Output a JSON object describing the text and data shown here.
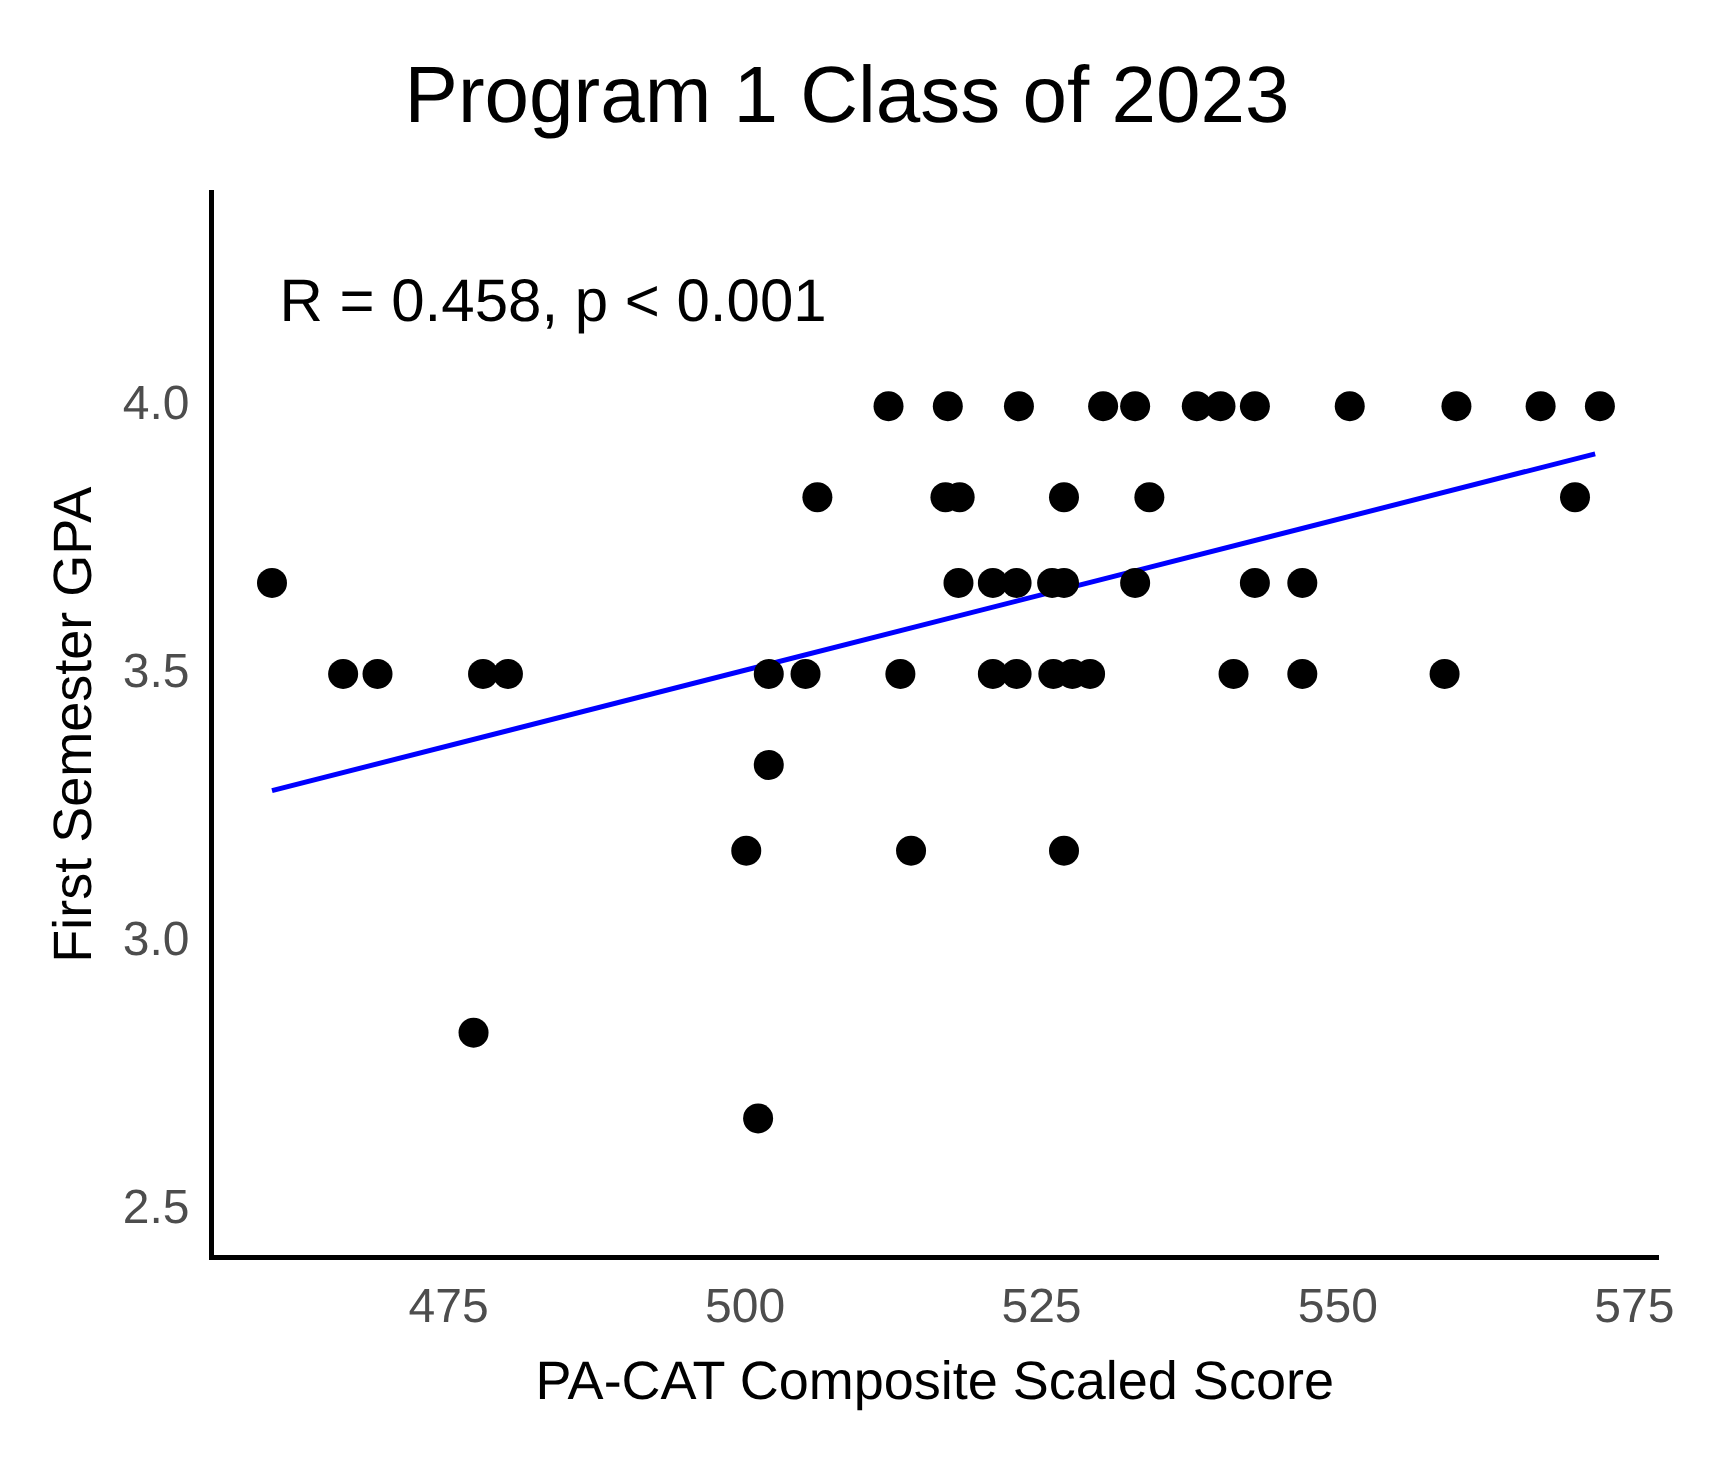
{
  "chart_data": {
    "type": "scatter",
    "title": "Program 1 Class of 2023",
    "xlabel": "PA-CAT Composite Scaled Score",
    "ylabel": "First Semester GPA",
    "annotations": [
      "R = 0.458, p < 0.001"
    ],
    "xlim": [
      455,
      577
    ],
    "xticks": [
      475,
      500,
      525,
      550,
      575
    ],
    "ylim": [
      2.41,
      4.4
    ],
    "yticks": [
      2.5,
      {
        "value": 3,
        "label": "3.0"
      },
      3.5,
      {
        "value": 4,
        "label": "4.0"
      }
    ],
    "grid": false,
    "legend": false,
    "marker": "circle",
    "series": [
      {
        "color": "#000000",
        "x": [
          512.1,
          517.1,
          523.1,
          530.2,
          532.9,
          538.1,
          540.1,
          543.0,
          551.0,
          560.0,
          567.1,
          572.1,
          506.1,
          516.9,
          518.1,
          526.9,
          534.1,
          570.0,
          460.1,
          518.0,
          520.9,
          522.9,
          525.9,
          526.9,
          532.9,
          543.0,
          547.0,
          466.1,
          469.0,
          477.9,
          480.0,
          502.0,
          505.1,
          513.1,
          520.9,
          522.9,
          526.0,
          527.6,
          529.1,
          541.2,
          547.0,
          559.0,
          502.0,
          500.1,
          514.0,
          526.9,
          477.1,
          501.1
        ],
        "values": [
          4.0,
          4.0,
          4.0,
          4.0,
          4.0,
          4.0,
          4.0,
          4.0,
          4.0,
          4.0,
          4.0,
          4.0,
          3.83,
          3.83,
          3.83,
          3.83,
          3.83,
          3.83,
          3.67,
          3.67,
          3.67,
          3.67,
          3.67,
          3.67,
          3.67,
          3.67,
          3.67,
          3.5,
          3.5,
          3.5,
          3.5,
          3.5,
          3.5,
          3.5,
          3.5,
          3.5,
          3.5,
          3.5,
          3.5,
          3.5,
          3.5,
          3.5,
          3.33,
          3.17,
          3.17,
          3.17,
          2.83,
          2.67
        ]
      },
      {
        "type": "line",
        "marker": "none",
        "color": "#0000ff",
        "x": [
          460.1,
          571.7
        ],
        "values": [
          3.282,
          3.911
        ]
      }
    ]
  }
}
